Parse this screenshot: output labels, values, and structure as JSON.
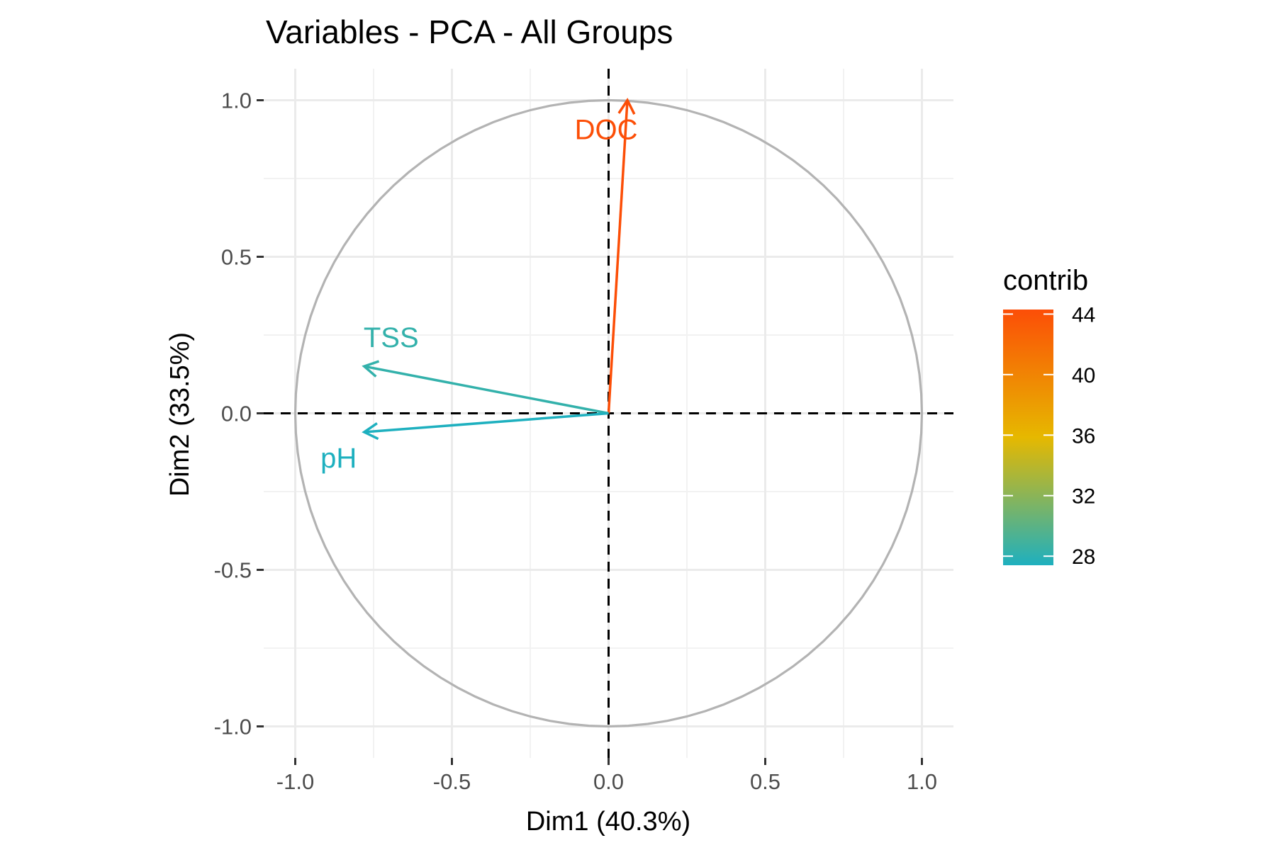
{
  "chart_data": {
    "type": "scatter",
    "subtype": "pca-variable-correlation-circle",
    "title": "Variables - PCA - All Groups",
    "xlabel": "Dim1 (40.3%)",
    "ylabel": "Dim2 (33.5%)",
    "xlim": [
      -1.1,
      1.1
    ],
    "ylim": [
      -1.1,
      1.1
    ],
    "xticks": [
      -1.0,
      -0.5,
      0.0,
      0.5,
      1.0
    ],
    "xtick_labels": [
      "-1.0",
      "-0.5",
      "0.0",
      "0.5",
      "1.0"
    ],
    "yticks": [
      -1.0,
      -0.5,
      0.0,
      0.5,
      1.0
    ],
    "ytick_labels": [
      "-1.0",
      "-0.5",
      "0.0",
      "0.5",
      "1.0"
    ],
    "grid": true,
    "unit_circle": true,
    "reference_lines": {
      "x": 0,
      "y": 0,
      "style": "dashed"
    },
    "variables": [
      {
        "name": "DOC",
        "x": 0.06,
        "y": 1.0,
        "contrib": 44.3
      },
      {
        "name": "TSS",
        "x": -0.78,
        "y": 0.15,
        "contrib": 28.3
      },
      {
        "name": "pH",
        "x": -0.78,
        "y": -0.06,
        "contrib": 27.4
      }
    ],
    "legend": {
      "title": "contrib",
      "position": "right",
      "range": [
        27.4,
        44.3
      ],
      "ticks": [
        28,
        32,
        36,
        40,
        44
      ],
      "tick_labels": [
        "28",
        "32",
        "36",
        "40",
        "44"
      ],
      "colors": [
        "#1EB0BF",
        "#E6B800",
        "#FC4E07"
      ]
    }
  }
}
